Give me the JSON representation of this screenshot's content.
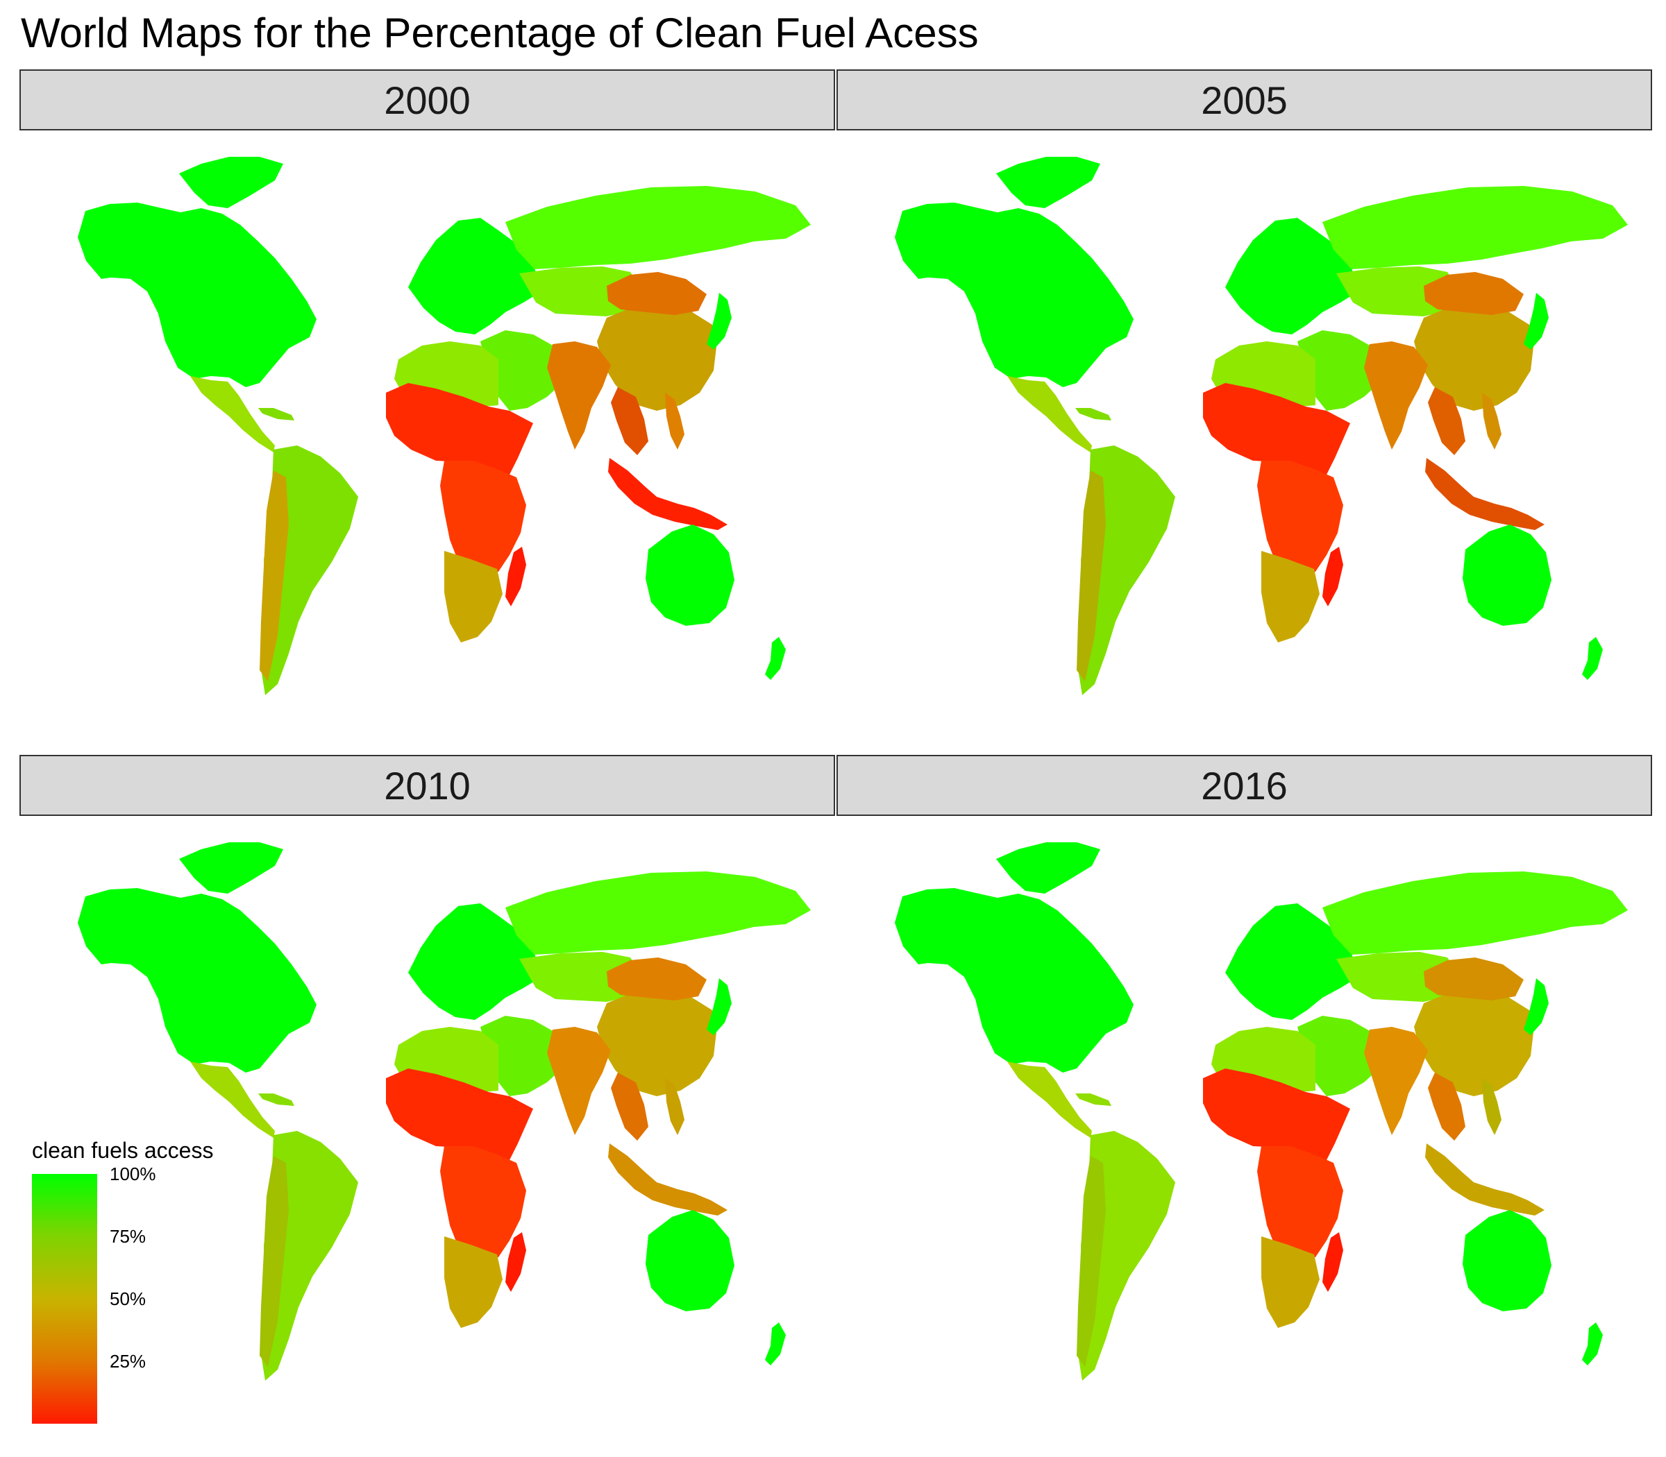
{
  "title": "World Maps for the Percentage of Clean Fuel Acess",
  "panels": [
    {
      "label": "2000",
      "fills": {
        "north_america": "#00ff00",
        "greenland": "#00ff00",
        "central_america": "#9ae000",
        "caribbean": "#7fdd00",
        "south_america": "#7ee000",
        "andes": "#c8a400",
        "europe": "#00ff00",
        "russia": "#55ff00",
        "central_asia": "#7ef000",
        "middle_east": "#66f000",
        "north_africa": "#8fe800",
        "west_africa": "#ff2a00",
        "central_africa": "#ff3a00",
        "southern_africa": "#c8a800",
        "madagascar": "#ff1a00",
        "china": "#c8a000",
        "mongolia_ne_china": "#e07000",
        "south_asia": "#e07800",
        "mainland_se_asia": "#e05000",
        "indonesia": "#ff2000",
        "philippines": "#e08000",
        "japan": "#00ff00",
        "australia": "#00ff00",
        "new_zealand": "#00ff00"
      }
    },
    {
      "label": "2005",
      "fills": {
        "north_america": "#00ff00",
        "greenland": "#00ff00",
        "central_america": "#a0da00",
        "caribbean": "#80dd00",
        "south_america": "#80e000",
        "andes": "#b0b000",
        "europe": "#00ff00",
        "russia": "#55ff00",
        "central_asia": "#7ef000",
        "middle_east": "#66f000",
        "north_africa": "#8fe800",
        "west_africa": "#ff2a00",
        "central_africa": "#ff3a00",
        "southern_africa": "#c8a800",
        "madagascar": "#ff1a00",
        "china": "#c8a400",
        "mongolia_ne_china": "#e07800",
        "south_asia": "#e08000",
        "mainland_se_asia": "#e06000",
        "indonesia": "#e05000",
        "philippines": "#d49000",
        "japan": "#00ff00",
        "australia": "#00ff00",
        "new_zealand": "#00ff00"
      }
    },
    {
      "label": "2010",
      "fills": {
        "north_america": "#00ff00",
        "greenland": "#00ff00",
        "central_america": "#a0da00",
        "caribbean": "#88dd00",
        "south_america": "#88e000",
        "andes": "#a0c000",
        "europe": "#00ff00",
        "russia": "#55ff00",
        "central_asia": "#7ef000",
        "middle_east": "#66f000",
        "north_africa": "#8fe800",
        "west_africa": "#ff2a00",
        "central_africa": "#ff3a00",
        "southern_africa": "#c8a800",
        "madagascar": "#ff1a00",
        "china": "#c8a800",
        "mongolia_ne_china": "#e08000",
        "south_asia": "#e08800",
        "mainland_se_asia": "#e07000",
        "indonesia": "#d49000",
        "philippines": "#c8a000",
        "japan": "#00ff00",
        "australia": "#00ff00",
        "new_zealand": "#00ff00"
      }
    },
    {
      "label": "2016",
      "fills": {
        "north_america": "#00ff00",
        "greenland": "#00ff00",
        "central_america": "#a8d800",
        "caribbean": "#90dd00",
        "south_america": "#90e000",
        "andes": "#98c800",
        "europe": "#00ff00",
        "russia": "#55ff00",
        "central_asia": "#7ef000",
        "middle_east": "#66f000",
        "north_africa": "#8fe800",
        "west_africa": "#ff2a00",
        "central_africa": "#ff3a00",
        "southern_africa": "#c8a800",
        "madagascar": "#ff1a00",
        "china": "#c8ac00",
        "mongolia_ne_china": "#d49000",
        "south_asia": "#e09000",
        "mainland_se_asia": "#e07800",
        "indonesia": "#c8a400",
        "philippines": "#b8b000",
        "japan": "#00ff00",
        "australia": "#00ff00",
        "new_zealand": "#00ff00"
      }
    }
  ],
  "legend": {
    "title": "clean fuels access",
    "low_color": "#ff1a00",
    "high_color": "#00ff00",
    "ticks": [
      {
        "label": "100%",
        "value": 100
      },
      {
        "label": "75%",
        "value": 75
      },
      {
        "label": "50%",
        "value": 50
      },
      {
        "label": "25%",
        "value": 25
      }
    ]
  }
}
